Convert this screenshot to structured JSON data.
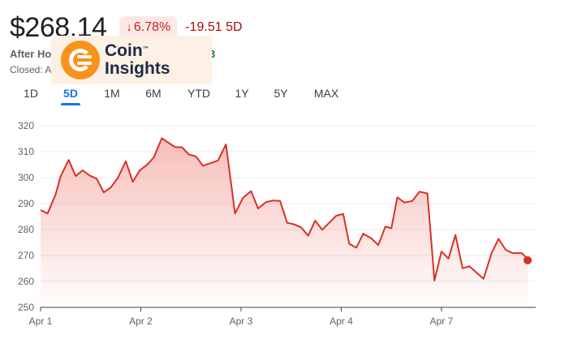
{
  "quote": {
    "price": "$268.14",
    "change_percent": "6.78%",
    "change_arrow": "↓",
    "change_value": "-19.51 5D",
    "after_hours_label": "After Ho",
    "after_hours_value": "3",
    "closed_line": "Closed: A                                                  DAQ · Disclaimer"
  },
  "watermark": {
    "brand_top": "Coin",
    "brand_bottom": "Insights",
    "trademark": "™"
  },
  "tabs": [
    {
      "label": "1D",
      "active": false
    },
    {
      "label": "5D",
      "active": true
    },
    {
      "label": "1M",
      "active": false
    },
    {
      "label": "6M",
      "active": false
    },
    {
      "label": "YTD",
      "active": false
    },
    {
      "label": "1Y",
      "active": false
    },
    {
      "label": "5Y",
      "active": false
    },
    {
      "label": "MAX",
      "active": false
    }
  ],
  "colors": {
    "line": "#d93025",
    "fill_top": "#f28b82",
    "grid": "#e8eaed",
    "axis": "#3c4043"
  },
  "chart_data": {
    "type": "area",
    "title": "",
    "xlabel": "",
    "ylabel": "",
    "ylim": [
      250,
      320
    ],
    "yticks": [
      320,
      310,
      300,
      290,
      280,
      270,
      260,
      250
    ],
    "x_tick_labels": [
      {
        "label": "Apr 1",
        "x": 0
      },
      {
        "label": "Apr 2",
        "x": 1
      },
      {
        "label": "Apr 3",
        "x": 2
      },
      {
        "label": "Apr 4",
        "x": 3
      },
      {
        "label": "Apr 7",
        "x": 4
      }
    ],
    "x_range": [
      0,
      4.94
    ],
    "series": [
      {
        "name": "Price",
        "points": [
          [
            0.0,
            287.5
          ],
          [
            0.07,
            286.2
          ],
          [
            0.15,
            293.5
          ],
          [
            0.2,
            300.5
          ],
          [
            0.28,
            306.8
          ],
          [
            0.35,
            300.6
          ],
          [
            0.42,
            302.8
          ],
          [
            0.49,
            300.8
          ],
          [
            0.56,
            299.6
          ],
          [
            0.63,
            294.3
          ],
          [
            0.7,
            296.2
          ],
          [
            0.77,
            299.8
          ],
          [
            0.85,
            306.3
          ],
          [
            0.92,
            298.4
          ],
          [
            0.99,
            302.8
          ],
          [
            1.07,
            305.2
          ],
          [
            1.13,
            307.8
          ],
          [
            1.21,
            315.2
          ],
          [
            1.27,
            313.6
          ],
          [
            1.34,
            311.8
          ],
          [
            1.41,
            311.7
          ],
          [
            1.48,
            308.9
          ],
          [
            1.55,
            308.2
          ],
          [
            1.62,
            304.6
          ],
          [
            1.69,
            305.5
          ],
          [
            1.77,
            306.6
          ],
          [
            1.85,
            312.8
          ],
          [
            1.94,
            286.2
          ],
          [
            2.02,
            292.2
          ],
          [
            2.1,
            294.8
          ],
          [
            2.17,
            288.1
          ],
          [
            2.25,
            290.6
          ],
          [
            2.32,
            291.2
          ],
          [
            2.39,
            291.0
          ],
          [
            2.46,
            282.6
          ],
          [
            2.53,
            282.0
          ],
          [
            2.6,
            280.8
          ],
          [
            2.67,
            277.6
          ],
          [
            2.74,
            283.4
          ],
          [
            2.81,
            279.9
          ],
          [
            2.88,
            282.6
          ],
          [
            2.95,
            285.3
          ],
          [
            3.02,
            286.0
          ],
          [
            3.08,
            274.5
          ],
          [
            3.15,
            273.0
          ],
          [
            3.22,
            278.4
          ],
          [
            3.3,
            276.6
          ],
          [
            3.37,
            274.0
          ],
          [
            3.44,
            281.1
          ],
          [
            3.5,
            280.5
          ],
          [
            3.56,
            292.4
          ],
          [
            3.63,
            290.4
          ],
          [
            3.71,
            291.0
          ],
          [
            3.78,
            294.6
          ],
          [
            3.86,
            293.9
          ],
          [
            3.93,
            260.3
          ],
          [
            4.0,
            271.5
          ],
          [
            4.07,
            268.8
          ],
          [
            4.14,
            277.9
          ],
          [
            4.21,
            265.1
          ],
          [
            4.28,
            265.8
          ],
          [
            4.35,
            263.4
          ],
          [
            4.42,
            261.0
          ],
          [
            4.5,
            270.9
          ],
          [
            4.57,
            276.4
          ],
          [
            4.64,
            272.2
          ],
          [
            4.71,
            270.9
          ],
          [
            4.8,
            270.9
          ],
          [
            4.86,
            268.7
          ]
        ],
        "last_value": 268.14
      }
    ]
  }
}
